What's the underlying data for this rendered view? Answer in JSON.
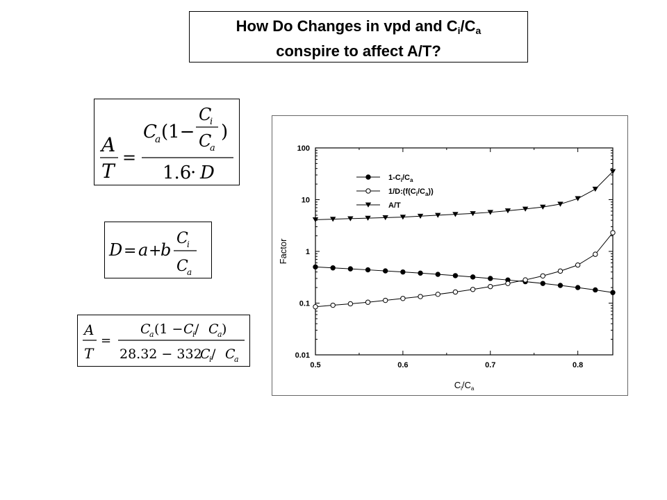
{
  "title": {
    "line1_pre": "How Do Changes in vpd and C",
    "sub_i": "i",
    "slash": "/C",
    "sub_a": "a",
    "line2": "conspire to affect A/T?"
  },
  "equations": {
    "eq1": {
      "A": "A",
      "T": "T",
      "Ca": "C",
      "a": "a",
      "one_minus": "(1−",
      "Ci": "C",
      "i": "i",
      "Ca2": "C",
      "a2": "a",
      "close": ")",
      "den_num": "1.6",
      "dot": "·",
      "D": "D"
    },
    "eq2": {
      "D": "D",
      "eq": "=",
      "a": "a",
      "plus": "+",
      "b": "b",
      "Ci": "C",
      "i": "i",
      "Ca": "C",
      "a2": "a"
    },
    "eq3": {
      "A": "A",
      "T": "T",
      "num_text": "(1 − ",
      "den_const": "28.32 − 332",
      "slash": " / "
    }
  },
  "chart_data": {
    "type": "line",
    "ylabel": "Factor",
    "xlabel_pre": "C",
    "xlabel_sub1": "i",
    "xlabel_mid": "/C",
    "xlabel_sub2": "a",
    "xlim": [
      0.5,
      0.84
    ],
    "ylim": [
      0.01,
      100
    ],
    "yscale": "log",
    "xticks": [
      "0.5",
      "0.6",
      "0.7",
      "0.8"
    ],
    "yticks": [
      "0.01",
      "0.1",
      "1",
      "10",
      "100"
    ],
    "legend_position": "top-left",
    "x": [
      0.5,
      0.52,
      0.54,
      0.56,
      0.58,
      0.6,
      0.62,
      0.64,
      0.66,
      0.68,
      0.7,
      0.72,
      0.74,
      0.76,
      0.78,
      0.8,
      0.82,
      0.84
    ],
    "series": [
      {
        "name": "1-Ci/Ca",
        "legend_pre": "1-C",
        "legend_sub1": "i",
        "legend_mid": "/C",
        "legend_sub2": "a",
        "legend_post": "",
        "marker": "filled-circle",
        "values": [
          0.5,
          0.48,
          0.46,
          0.44,
          0.42,
          0.4,
          0.38,
          0.36,
          0.34,
          0.32,
          0.3,
          0.28,
          0.26,
          0.24,
          0.22,
          0.2,
          0.18,
          0.16
        ]
      },
      {
        "name": "1/D:(f(Ci/Ca))",
        "legend_pre": "1/D:(f(C",
        "legend_sub1": "i",
        "legend_mid": "/C",
        "legend_sub2": "a",
        "legend_post": "))",
        "marker": "open-circle",
        "values": [
          0.085,
          0.091,
          0.097,
          0.104,
          0.113,
          0.123,
          0.134,
          0.148,
          0.164,
          0.184,
          0.209,
          0.24,
          0.281,
          0.336,
          0.416,
          0.545,
          0.88,
          2.3
        ]
      },
      {
        "name": "A/T",
        "legend_pre": "A/T",
        "legend_sub1": "",
        "legend_mid": "",
        "legend_sub2": "",
        "legend_post": "",
        "marker": "filled-triangle-down",
        "values": [
          4.1,
          4.2,
          4.3,
          4.4,
          4.5,
          4.6,
          4.8,
          5.0,
          5.2,
          5.4,
          5.7,
          6.1,
          6.6,
          7.2,
          8.2,
          10.5,
          16.0,
          35.0
        ]
      }
    ]
  }
}
